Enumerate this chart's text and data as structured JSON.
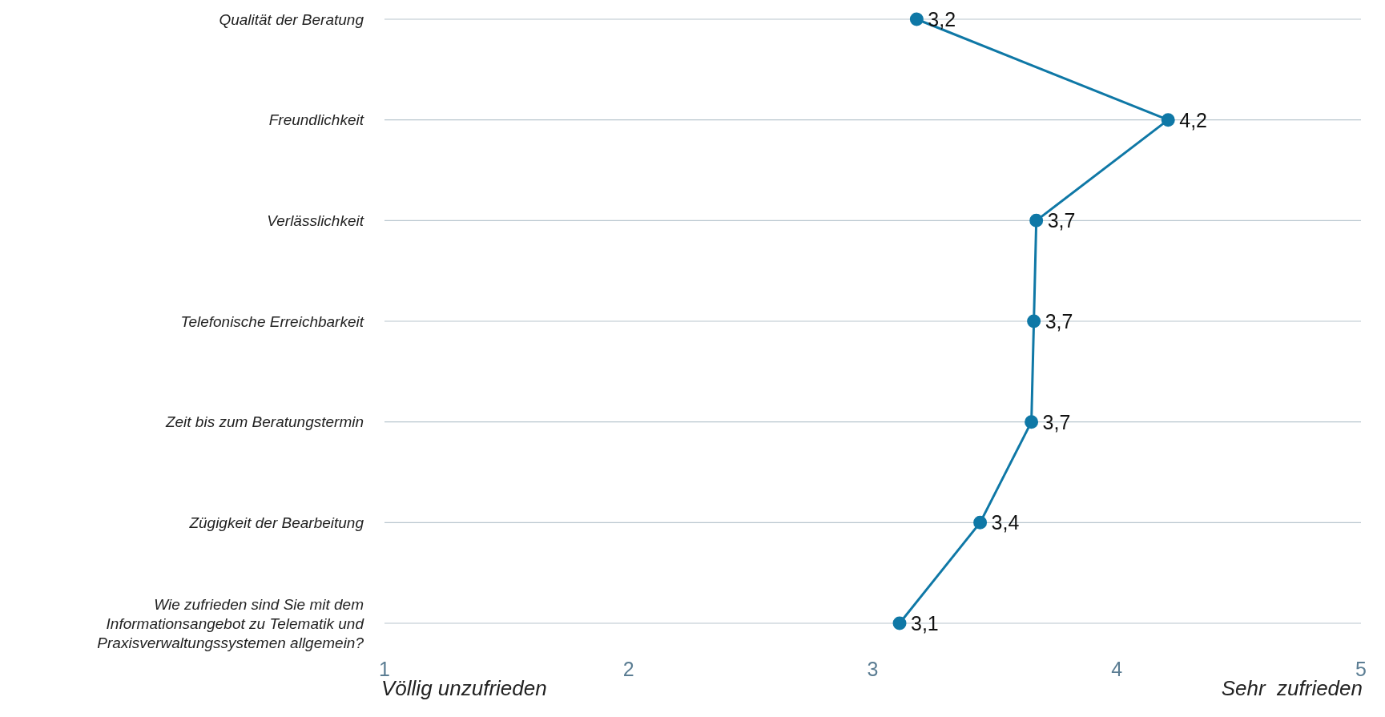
{
  "chart_data": {
    "type": "line",
    "orientation": "horizontal",
    "categories": [
      "Qualität der Beratung",
      "Freundlichkeit",
      "Verlässlichkeit",
      "Telefonische Erreichbarkeit",
      "Zeit bis zum Beratungstermin",
      "Zügigkeit der Bearbeitung",
      "Wie zufrieden sind Sie mit dem Informationsangebot zu Telematik und Praxisverwaltungssystemen allgemein?"
    ],
    "values": [
      3.18,
      4.21,
      3.67,
      3.66,
      3.65,
      3.44,
      3.11
    ],
    "value_labels": [
      "3,2",
      "4,2",
      "3,7",
      "3,7",
      "3,7",
      "3,4",
      "3,1"
    ],
    "color": "#0f78a6",
    "xlim": [
      1,
      5
    ],
    "xticks": [
      1,
      2,
      3,
      4,
      5
    ],
    "grid": "y",
    "marker": "circle",
    "line_style": "solid",
    "annotations": [
      "Völlig unzufrieden",
      "Sehr  zufrieden"
    ]
  }
}
